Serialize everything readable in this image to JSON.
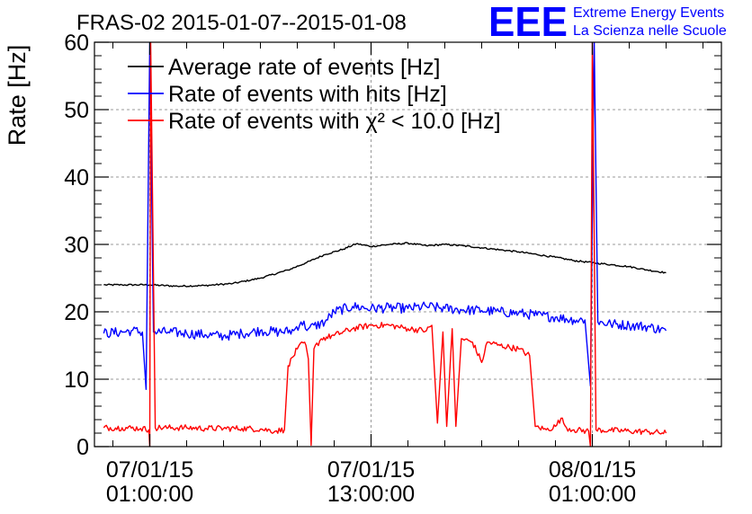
{
  "chart_data": {
    "type": "line",
    "title": "FRAS-02 2015-01-07--2015-01-08",
    "ylabel": "Rate [Hz]",
    "xlabel": "",
    "ylim": [
      0,
      60
    ],
    "yticks": [
      0,
      10,
      20,
      30,
      40,
      50,
      60
    ],
    "grid": true,
    "legend_position": "top-left",
    "x_range_hours": [
      -3,
      31
    ],
    "x_ticks": [
      {
        "hour": 0,
        "date": "07/01/15",
        "time": "01:00:00"
      },
      {
        "hour": 12,
        "date": "07/01/15",
        "time": "13:00:00"
      },
      {
        "hour": 24,
        "date": "08/01/15",
        "time": "01:00:00"
      }
    ],
    "series": [
      {
        "name": "Average rate of events [Hz]",
        "color": "#000000",
        "points": [
          [
            -2.5,
            24.0
          ],
          [
            -1.5,
            24.0
          ],
          [
            0,
            24.0
          ],
          [
            1.5,
            23.8
          ],
          [
            3,
            23.9
          ],
          [
            4.5,
            24.2
          ],
          [
            6,
            25.0
          ],
          [
            7.5,
            26.2
          ],
          [
            8.5,
            27.3
          ],
          [
            9.5,
            28.5
          ],
          [
            10.5,
            29.3
          ],
          [
            11.2,
            30.1
          ],
          [
            12,
            29.7
          ],
          [
            13,
            30.0
          ],
          [
            14,
            30.2
          ],
          [
            15,
            29.8
          ],
          [
            16,
            30.0
          ],
          [
            17,
            29.8
          ],
          [
            18,
            29.5
          ],
          [
            19,
            29.2
          ],
          [
            20,
            28.9
          ],
          [
            21,
            28.5
          ],
          [
            22,
            28.1
          ],
          [
            23,
            27.6
          ],
          [
            24,
            27.3
          ],
          [
            25,
            27.0
          ],
          [
            26,
            26.7
          ],
          [
            27,
            26.2
          ],
          [
            28,
            25.8
          ]
        ]
      },
      {
        "name": "Rate of events with hits [Hz]",
        "color": "#0000ff",
        "points": [
          [
            -2.5,
            16.8
          ],
          [
            -1.5,
            17.0
          ],
          [
            -1.0,
            17.2
          ],
          [
            -0.4,
            17.0
          ],
          [
            -0.2,
            8.5
          ],
          [
            0.0,
            60
          ],
          [
            0.2,
            17.0
          ],
          [
            1,
            17.0
          ],
          [
            2,
            16.8
          ],
          [
            3,
            16.6
          ],
          [
            4,
            16.4
          ],
          [
            5,
            16.8
          ],
          [
            6,
            17.2
          ],
          [
            7,
            17.0
          ],
          [
            7.8,
            17.2
          ],
          [
            8.2,
            18.5
          ],
          [
            8.6,
            17.5
          ],
          [
            9.5,
            18.5
          ],
          [
            10,
            20.0
          ],
          [
            11,
            20.8
          ],
          [
            12,
            20.5
          ],
          [
            13,
            20.6
          ],
          [
            14,
            20.5
          ],
          [
            15,
            20.8
          ],
          [
            16,
            20.5
          ],
          [
            17,
            20.3
          ],
          [
            18,
            20.2
          ],
          [
            19,
            20.0
          ],
          [
            20,
            19.8
          ],
          [
            21,
            19.5
          ],
          [
            22,
            19.2
          ],
          [
            23,
            18.8
          ],
          [
            23.6,
            18.8
          ],
          [
            23.9,
            9.0
          ],
          [
            24.1,
            60
          ],
          [
            24.3,
            18.5
          ],
          [
            25,
            18.2
          ],
          [
            26,
            18.0
          ],
          [
            27,
            17.8
          ],
          [
            28,
            17.2
          ]
        ]
      },
      {
        "name": "Rate of events with χ² < 10.0 [Hz]",
        "color": "#ff0000",
        "points": [
          [
            -2.5,
            2.8
          ],
          [
            -1.5,
            2.8
          ],
          [
            -0.5,
            2.7
          ],
          [
            -0.05,
            2.5
          ],
          [
            0,
            0
          ],
          [
            0.05,
            60
          ],
          [
            0.3,
            2.8
          ],
          [
            1,
            2.8
          ],
          [
            2,
            2.8
          ],
          [
            3,
            2.7
          ],
          [
            4,
            2.7
          ],
          [
            5,
            2.7
          ],
          [
            6,
            2.6
          ],
          [
            6.8,
            2.3
          ],
          [
            7.3,
            2.5
          ],
          [
            7.5,
            12.0
          ],
          [
            8,
            14.5
          ],
          [
            8.4,
            15.5
          ],
          [
            8.6,
            13.0
          ],
          [
            8.75,
            0.2
          ],
          [
            8.9,
            14.5
          ],
          [
            9.3,
            16.0
          ],
          [
            10,
            16.5
          ],
          [
            11,
            17.5
          ],
          [
            12,
            18.0
          ],
          [
            13,
            18.0
          ],
          [
            14,
            17.5
          ],
          [
            15,
            17.2
          ],
          [
            15.3,
            18.0
          ],
          [
            15.6,
            3.5
          ],
          [
            15.9,
            17.0
          ],
          [
            16.1,
            3.0
          ],
          [
            16.4,
            17.5
          ],
          [
            16.6,
            3.0
          ],
          [
            16.9,
            16.0
          ],
          [
            17.5,
            15.5
          ],
          [
            18,
            12.5
          ],
          [
            18.3,
            15.5
          ],
          [
            19,
            15.0
          ],
          [
            20,
            14.5
          ],
          [
            20.6,
            13.5
          ],
          [
            20.9,
            3.0
          ],
          [
            21.5,
            2.5
          ],
          [
            22,
            3.0
          ],
          [
            22.3,
            4.2
          ],
          [
            22.6,
            2.8
          ],
          [
            23,
            2.5
          ],
          [
            23.8,
            2.3
          ],
          [
            23.9,
            0
          ],
          [
            24,
            60
          ],
          [
            24.2,
            2.5
          ],
          [
            25,
            2.4
          ],
          [
            26,
            2.3
          ],
          [
            27,
            2.2
          ],
          [
            28,
            2.0
          ]
        ]
      }
    ]
  },
  "logo": {
    "mark": "EEE",
    "line1": "Extreme Energy Events",
    "line2": "La Scienza nelle Scuole",
    "color": "#0000ff"
  }
}
